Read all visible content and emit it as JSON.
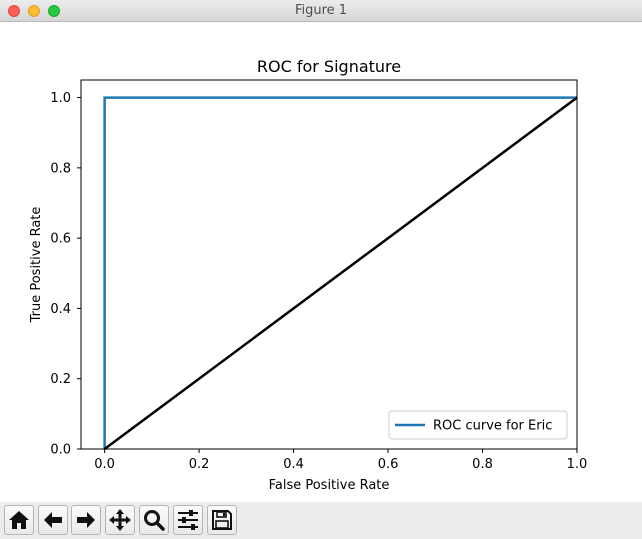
{
  "window": {
    "title": "Figure 1"
  },
  "toolbar": {
    "buttons": [
      {
        "name": "home-button",
        "icon": "home-icon"
      },
      {
        "name": "back-button",
        "icon": "arrow-left-icon"
      },
      {
        "name": "forward-button",
        "icon": "arrow-right-icon"
      },
      {
        "name": "pan-button",
        "icon": "move-icon"
      },
      {
        "name": "zoom-button",
        "icon": "magnifier-icon"
      },
      {
        "name": "configure-subplots-button",
        "icon": "sliders-icon"
      },
      {
        "name": "save-button",
        "icon": "floppy-disk-icon"
      }
    ]
  },
  "chart_data": {
    "type": "line",
    "title": "ROC for Signature",
    "xlabel": "False Positive Rate",
    "ylabel": "True Positive Rate",
    "xlim": [
      -0.05,
      1.0
    ],
    "ylim": [
      0.0,
      1.05
    ],
    "xticks": [
      "0.0",
      "0.2",
      "0.4",
      "0.6",
      "0.8",
      "1.0"
    ],
    "yticks": [
      "0.0",
      "0.2",
      "0.4",
      "0.6",
      "0.8",
      "1.0"
    ],
    "grid": false,
    "legend_position": "lower right",
    "series": [
      {
        "name": "ROC curve for Eric",
        "color": "#1f77b4",
        "x": [
          0.0,
          0.0,
          1.0
        ],
        "y": [
          0.0,
          1.0,
          1.0
        ]
      },
      {
        "color": "#000000",
        "x": [
          0.0,
          1.0
        ],
        "y": [
          0.0,
          1.0
        ]
      }
    ]
  }
}
